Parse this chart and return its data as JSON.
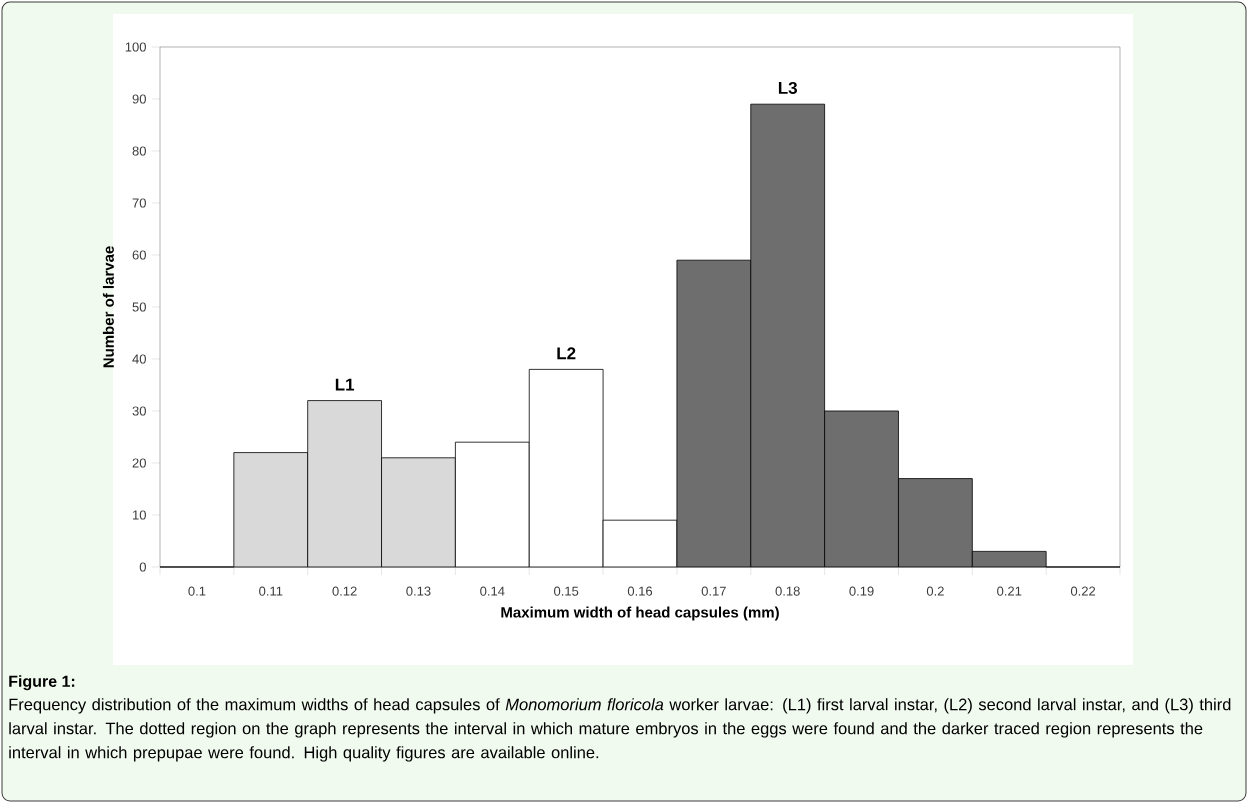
{
  "chart_data": {
    "type": "bar",
    "title": "Figure 1:",
    "xlabel": "Maximum width of head capsules (mm)",
    "ylabel": "Number of larvae",
    "categories": [
      "0.1",
      "0.11",
      "0.12",
      "0.13",
      "0.14",
      "0.15",
      "0.16",
      "0.17",
      "0.18",
      "0.19",
      "0.2",
      "0.21",
      "0.22"
    ],
    "values": [
      0,
      22,
      32,
      21,
      24,
      38,
      9,
      59,
      89,
      30,
      17,
      3,
      0
    ],
    "colors": [
      "#d9d9d9",
      "#d9d9d9",
      "#d9d9d9",
      "#d9d9d9",
      "#ffffff",
      "#ffffff",
      "#ffffff",
      "#6e6e6e",
      "#6e6e6e",
      "#6e6e6e",
      "#6e6e6e",
      "#6e6e6e",
      "#6e6e6e"
    ],
    "ylim": [
      0,
      100
    ],
    "yticks": [
      0,
      10,
      20,
      30,
      40,
      50,
      60,
      70,
      80,
      90,
      100
    ],
    "grid": false,
    "annotations": [
      {
        "text": "L1",
        "x": "0.12",
        "y": 32
      },
      {
        "text": "L2",
        "x": "0.15",
        "y": 38
      },
      {
        "text": "L3",
        "x": "0.18",
        "y": 89
      },
      "Frequency distribution of the maximum widths of head capsules of *Monomorium floricola* worker larvae: (L1) first larval instar, (L2) second larval instar, and (L3) third larval instar. The dotted region on the graph represents the interval in which mature embryos in the eggs were found and the darker traced region represents the interval in which prepupae were found.  High quality figures are available online."
    ]
  }
}
